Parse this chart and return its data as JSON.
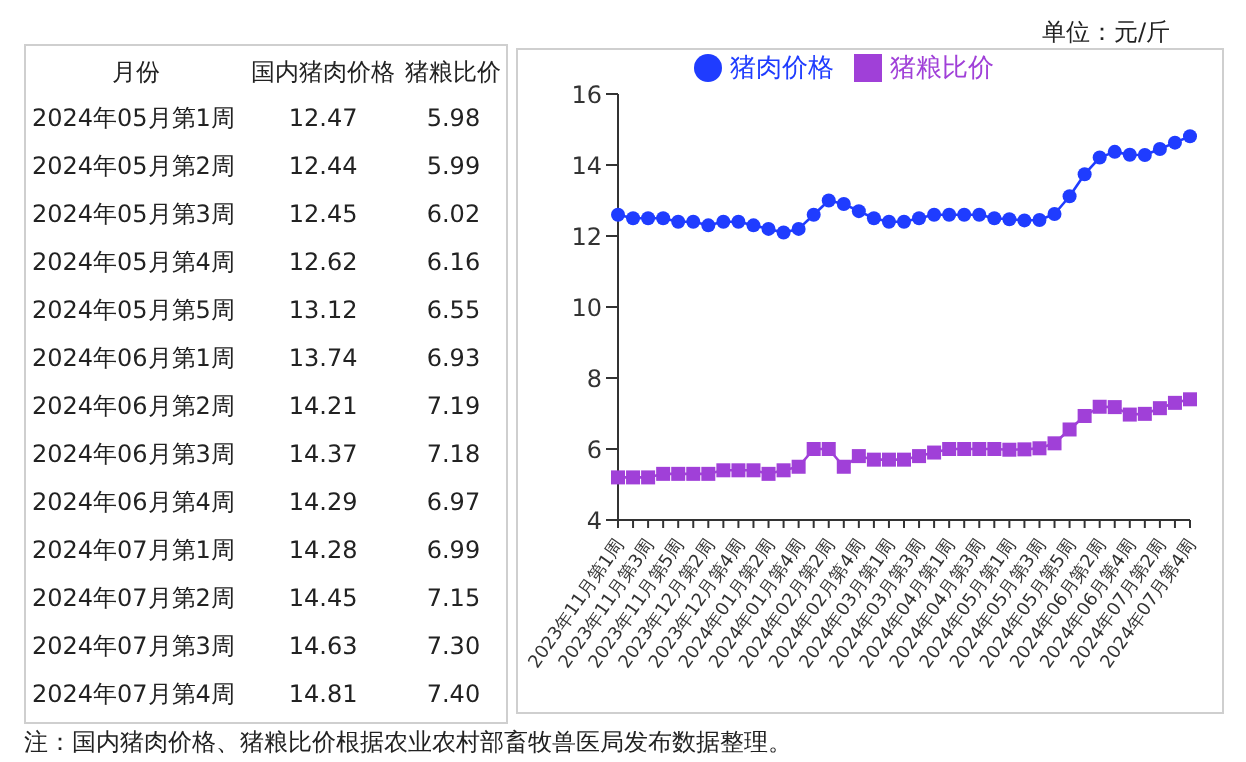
{
  "chart_data": [
    {
      "type": "other",
      "xlabel": "月份",
      "categories": [
        "2024年05月第1周",
        "2024年05月第2周",
        "2024年05月第3周",
        "2024年05月第4周",
        "2024年05月第5周",
        "2024年06月第1周",
        "2024年06月第2周",
        "2024年06月第3周",
        "2024年06月第4周",
        "2024年07月第1周",
        "2024年07月第2周",
        "2024年07月第3周",
        "2024年07月第4周"
      ],
      "series": [
        {
          "name": "国内猪肉价格",
          "values": [
            12.47,
            12.44,
            12.45,
            12.62,
            13.12,
            13.74,
            14.21,
            14.37,
            14.29,
            14.28,
            14.45,
            14.63,
            14.81
          ],
          "value_labels": [
            "12.47",
            "12.44",
            "12.45",
            "12.62",
            "13.12",
            "13.74",
            "14.21",
            "14.37",
            "14.29",
            "14.28",
            "14.45",
            "14.63",
            "14.81"
          ]
        },
        {
          "name": "猪粮比价",
          "values": [
            5.98,
            5.99,
            6.02,
            6.16,
            6.55,
            6.93,
            7.19,
            7.18,
            6.97,
            6.99,
            7.15,
            7.3,
            7.4
          ],
          "value_labels": [
            "5.98",
            "5.99",
            "6.02",
            "6.16",
            "6.55",
            "6.93",
            "7.19",
            "7.18",
            "6.97",
            "6.99",
            "7.15",
            "7.30",
            "7.40"
          ]
        }
      ]
    },
    {
      "type": "line",
      "categories": [
        "2023年11月第1周",
        null,
        "2023年11月第3周",
        null,
        "2023年11月第5周",
        null,
        "2023年12月第2周",
        null,
        "2023年12月第4周",
        null,
        "2024年01月第2周",
        null,
        "2024年01月第4周",
        null,
        "2024年02月第2周",
        null,
        "2024年02月第4周",
        null,
        "2024年03月第1周",
        null,
        "2024年03月第3周",
        null,
        "2024年04月第1周",
        null,
        "2024年04月第3周",
        null,
        "2024年05月第1周",
        null,
        "2024年05月第3周",
        null,
        "2024年05月第5周",
        null,
        "2024年06月第2周",
        null,
        "2024年06月第4周",
        null,
        "2024年07月第2周",
        null,
        "2024年07月第4周"
      ],
      "series": [
        {
          "name": "猪肉价格",
          "color": "#1f3cff",
          "marker": "circle",
          "values": [
            12.6,
            12.5,
            12.5,
            12.5,
            12.4,
            12.4,
            12.3,
            12.4,
            12.4,
            12.3,
            12.2,
            12.1,
            12.2,
            12.6,
            13.0,
            12.9,
            12.7,
            12.5,
            12.4,
            12.4,
            12.5,
            12.6,
            12.6,
            12.6,
            12.6,
            12.5,
            12.47,
            12.44,
            12.45,
            12.62,
            13.12,
            13.74,
            14.21,
            14.37,
            14.29,
            14.28,
            14.45,
            14.63,
            14.81
          ]
        },
        {
          "name": "猪粮比价",
          "color": "#a040d8",
          "marker": "square",
          "values": [
            5.2,
            5.2,
            5.2,
            5.3,
            5.3,
            5.3,
            5.3,
            5.4,
            5.4,
            5.4,
            5.3,
            5.4,
            5.5,
            6.0,
            6.0,
            5.5,
            5.8,
            5.7,
            5.7,
            5.7,
            5.8,
            5.9,
            6.0,
            6.0,
            6.0,
            6.0,
            5.98,
            5.99,
            6.02,
            6.16,
            6.55,
            6.93,
            7.19,
            7.18,
            6.97,
            6.99,
            7.15,
            7.3,
            7.4
          ]
        }
      ],
      "ylim": [
        4,
        16
      ],
      "yticks": [
        4,
        6,
        8,
        10,
        12,
        14,
        16
      ],
      "legend": "top",
      "annotations": [
        "单位：元/斤",
        "注：国内猪肉价格、猪粮比价根据农业农村部畜牧兽医局发布数据整理。"
      ]
    }
  ]
}
